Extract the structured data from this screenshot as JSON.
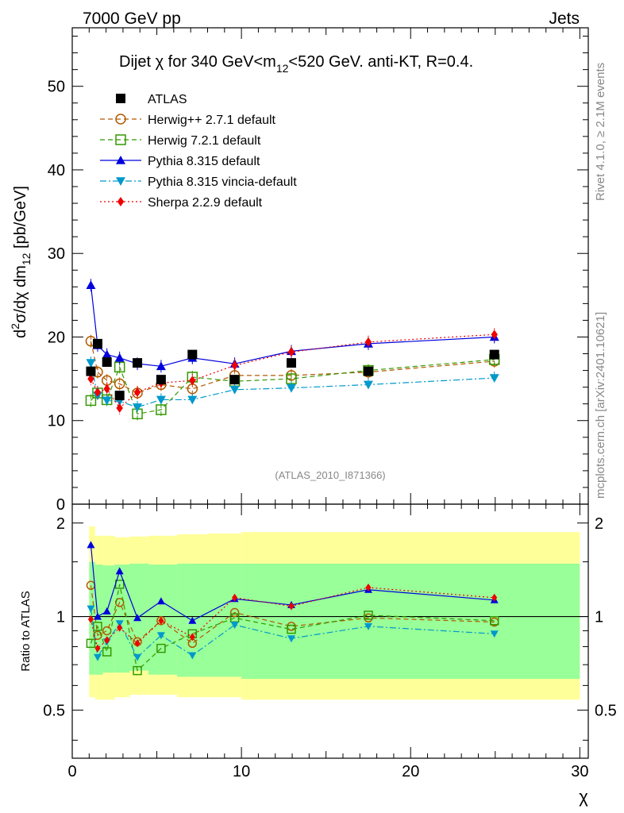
{
  "header": {
    "left": "7000 GeV pp",
    "right": "Jets"
  },
  "side_labels": {
    "rivet": "Rivet 4.1.0, ≥ 2.1M events",
    "mcplots": "mcplots.cern.ch [arXiv:2401.10621]"
  },
  "analysis_id": "(ATLAS_2010_I871366)",
  "chart_data": {
    "type": "line",
    "title": "Dijet χ for 340 GeV<m12<520 GeV.  anti-KT, R=0.4.",
    "title_parts": {
      "a": "Dijet ",
      "chi": "χ",
      "b": " for 340 GeV<m",
      "sub": "12",
      "c": "<520 GeV.  anti-KT, R=0.4."
    },
    "ylabel": "d²σ/dχ dm12 [pb/GeV]",
    "ylabel_parts": {
      "d": "d",
      "sup": "2",
      "rest": "σ/dχ dm",
      "sub": "12",
      "unit": " [pb/GeV]"
    },
    "ratio_ylabel": "Ratio to ATLAS",
    "xlabel": "χ",
    "xlim": [
      0,
      30.5
    ],
    "ylim": [
      0,
      57
    ],
    "ratio_ylim": [
      0.35,
      2.3
    ],
    "x_ticks": [
      "0",
      "10",
      "20",
      "30"
    ],
    "y_ticks": [
      "0",
      "10",
      "20",
      "30",
      "40",
      "50"
    ],
    "ratio_ticks": [
      "0.5",
      "1",
      "2"
    ],
    "x": [
      1.1,
      1.5,
      2.05,
      2.8,
      3.85,
      5.25,
      7.1,
      9.6,
      12.95,
      17.5,
      24.95
    ],
    "data": {
      "name": "ATLAS",
      "values": [
        15.9,
        19.2,
        17.0,
        13.0,
        16.9,
        14.9,
        17.9,
        14.9,
        16.9,
        15.9,
        17.9
      ]
    },
    "series": [
      {
        "name": "Herwig++ 2.7.1 default",
        "color": "#b35900",
        "marker": "circle-open",
        "dash": "6,4",
        "values": [
          19.5,
          15.8,
          14.8,
          14.4,
          13.3,
          14.3,
          13.8,
          15.4,
          15.4,
          15.8,
          17.1
        ],
        "ratio": [
          1.26,
          0.87,
          0.9,
          1.11,
          0.83,
          0.97,
          0.82,
          1.03,
          0.93,
          0.99,
          0.96
        ]
      },
      {
        "name": "Herwig 7.2.1 default",
        "color": "#339900",
        "marker": "square-open",
        "dash": "6,4",
        "values": [
          12.4,
          13.3,
          12.5,
          16.4,
          10.8,
          11.3,
          15.2,
          14.7,
          15.0,
          16.0,
          17.3
        ],
        "ratio": [
          0.82,
          0.93,
          0.77,
          1.27,
          0.67,
          0.79,
          0.88,
          0.99,
          0.91,
          1.01,
          0.97
        ]
      },
      {
        "name": "Pythia 8.315 default",
        "color": "#0000dd",
        "marker": "triangle-up",
        "dash": "",
        "values": [
          26.2,
          19.0,
          17.9,
          17.5,
          16.8,
          16.5,
          17.5,
          16.8,
          18.3,
          19.2,
          20.0
        ],
        "ratio": [
          1.7,
          1.0,
          1.04,
          1.4,
          0.99,
          1.12,
          0.97,
          1.14,
          1.09,
          1.22,
          1.13
        ]
      },
      {
        "name": "Pythia 8.315 vincia-default",
        "color": "#0099cc",
        "marker": "triangle-down",
        "dash": "8,3,2,3",
        "values": [
          16.9,
          13.0,
          12.4,
          12.3,
          11.6,
          12.5,
          12.5,
          13.7,
          13.9,
          14.3,
          15.1
        ],
        "ratio": [
          1.06,
          0.74,
          0.83,
          0.95,
          0.74,
          0.87,
          0.75,
          0.94,
          0.85,
          0.93,
          0.88
        ]
      },
      {
        "name": "Sherpa 2.2.9 default",
        "color": "#ee0000",
        "marker": "diamond",
        "dash": "2,3",
        "values": [
          15.0,
          13.4,
          13.8,
          11.5,
          13.4,
          14.5,
          14.8,
          16.6,
          18.2,
          19.4,
          20.3
        ],
        "ratio": [
          0.98,
          0.79,
          0.84,
          0.92,
          0.82,
          0.97,
          0.86,
          1.15,
          1.08,
          1.24,
          1.15
        ]
      }
    ],
    "bands": {
      "yellow": [
        [
          0.55,
          1.95
        ],
        [
          0.54,
          1.82
        ],
        [
          0.54,
          1.82
        ],
        [
          0.55,
          1.8
        ],
        [
          0.56,
          1.81
        ],
        [
          0.56,
          1.82
        ],
        [
          0.55,
          1.84
        ],
        [
          0.55,
          1.85
        ],
        [
          0.54,
          1.87
        ]
      ],
      "green": [
        [
          0.65,
          1.5
        ],
        [
          0.65,
          1.47
        ],
        [
          0.66,
          1.46
        ],
        [
          0.66,
          1.47
        ],
        [
          0.67,
          1.48
        ],
        [
          0.65,
          1.47
        ],
        [
          0.64,
          1.48
        ],
        [
          0.64,
          1.48
        ],
        [
          0.63,
          1.48
        ]
      ],
      "edges": [
        1.0,
        1.35,
        1.8,
        2.5,
        3.4,
        4.5,
        6.2,
        8.0,
        10.0,
        30.0
      ]
    }
  }
}
